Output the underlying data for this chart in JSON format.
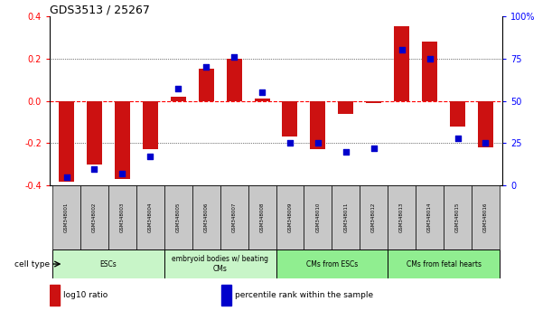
{
  "title": "GDS3513 / 25267",
  "samples": [
    "GSM348001",
    "GSM348002",
    "GSM348003",
    "GSM348004",
    "GSM348005",
    "GSM348006",
    "GSM348007",
    "GSM348008",
    "GSM348009",
    "GSM348010",
    "GSM348011",
    "GSM348012",
    "GSM348013",
    "GSM348014",
    "GSM348015",
    "GSM348016"
  ],
  "log10_ratio": [
    -0.38,
    -0.3,
    -0.37,
    -0.23,
    0.02,
    0.15,
    0.2,
    0.01,
    -0.17,
    -0.23,
    -0.06,
    -0.01,
    0.35,
    0.28,
    -0.12,
    -0.22
  ],
  "percentile_rank": [
    5,
    10,
    7,
    17,
    57,
    70,
    76,
    55,
    25,
    25,
    20,
    22,
    80,
    75,
    28,
    25
  ],
  "cell_type_groups": [
    {
      "label": "ESCs",
      "start": 0,
      "end": 3,
      "color": "#c8f5c8"
    },
    {
      "label": "embryoid bodies w/ beating\nCMs",
      "start": 4,
      "end": 7,
      "color": "#c8f5c8"
    },
    {
      "label": "CMs from ESCs",
      "start": 8,
      "end": 11,
      "color": "#90ee90"
    },
    {
      "label": "CMs from fetal hearts",
      "start": 12,
      "end": 15,
      "color": "#90ee90"
    }
  ],
  "bar_color": "#cc1111",
  "dot_color": "#0000cc",
  "ylim_left": [
    -0.4,
    0.4
  ],
  "ylim_right": [
    0,
    100
  ],
  "yticks_left": [
    -0.4,
    -0.2,
    0.0,
    0.2,
    0.4
  ],
  "yticks_right": [
    0,
    25,
    50,
    75,
    100
  ],
  "ytick_right_labels": [
    "0",
    "25",
    "50",
    "75",
    "100%"
  ],
  "legend_items": [
    {
      "label": "log10 ratio",
      "color": "#cc1111"
    },
    {
      "label": "percentile rank within the sample",
      "color": "#0000cc"
    }
  ],
  "sample_box_color": "#C8C8C8",
  "cell_type_label": "cell type"
}
